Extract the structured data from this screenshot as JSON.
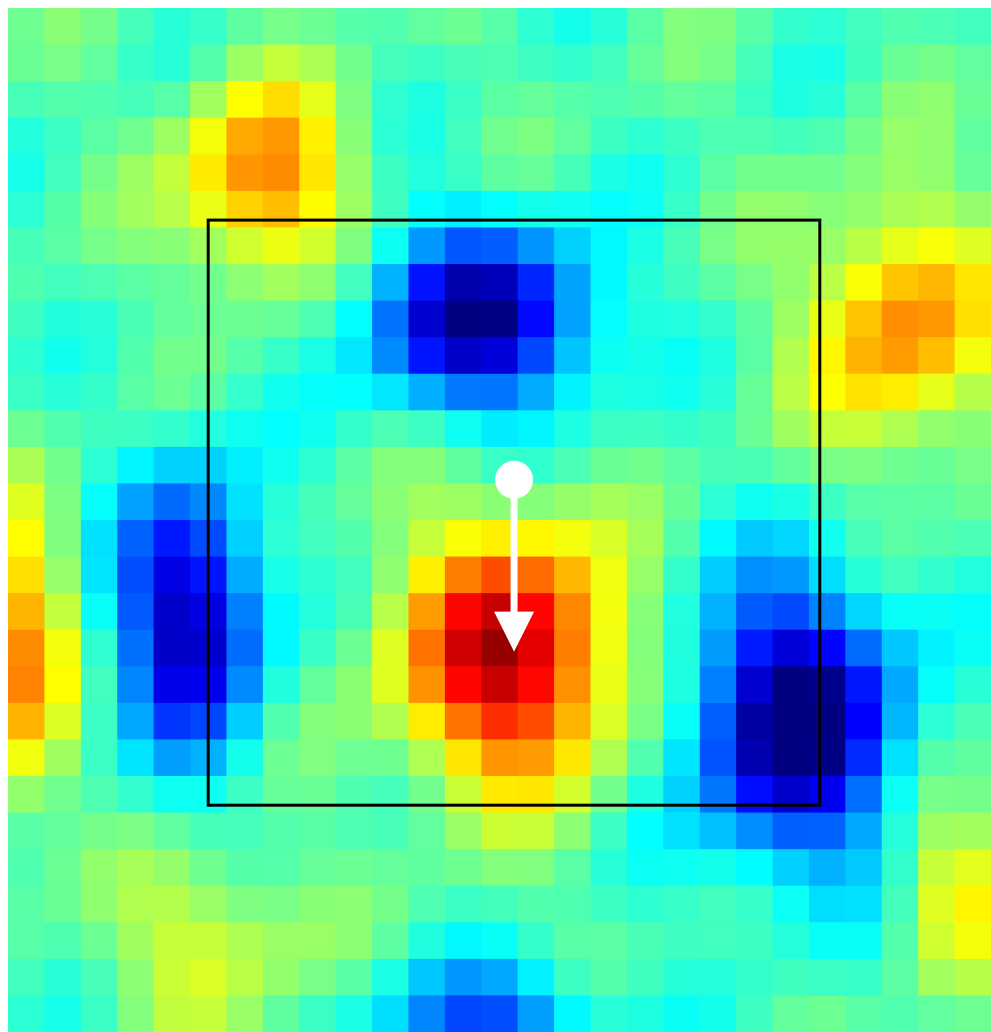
{
  "chart_data": {
    "type": "heatmap",
    "title": "",
    "xlabel": "",
    "ylabel": "",
    "colormap": "jet",
    "grid_cols": 27,
    "grid_rows": 28,
    "value_range": [
      -1,
      1
    ],
    "blobs": [
      {
        "cx": 7.0,
        "cy": 4.7,
        "sx": 2.3,
        "sy": 2.7,
        "amp": 0.62
      },
      {
        "cx": 24.5,
        "cy": 8.7,
        "sx": 2.6,
        "sy": 3.4,
        "amp": 0.58
      },
      {
        "cx": 13.0,
        "cy": 8.5,
        "sx": 3.1,
        "sy": 2.5,
        "amp": -0.85
      },
      {
        "cx": 13.8,
        "cy": 17.7,
        "sx": 3.0,
        "sy": 3.5,
        "amp": 1.0
      },
      {
        "cx": 5.0,
        "cy": 16.6,
        "sx": 2.0,
        "sy": 3.8,
        "amp": -0.82
      },
      {
        "cx": 21.6,
        "cy": 19.5,
        "sx": 2.9,
        "sy": 3.8,
        "amp": -0.95
      },
      {
        "cx": 0.5,
        "cy": 17.7,
        "sx": 1.2,
        "sy": 4.0,
        "amp": 0.55
      },
      {
        "cx": 13.2,
        "cy": 27.8,
        "sx": 3.0,
        "sy": 1.6,
        "amp": -0.5
      },
      {
        "cx": 5.5,
        "cy": 25.5,
        "sx": 2.5,
        "sy": 2.5,
        "amp": 0.3
      },
      {
        "cx": 26.0,
        "cy": 24.0,
        "sx": 1.5,
        "sy": 2.5,
        "amp": 0.35
      }
    ],
    "background_value": -0.1,
    "overlay": {
      "box": {
        "x0": 5.5,
        "y0": 5.8,
        "x1": 22.3,
        "y1": 21.8,
        "color": "#000000"
      },
      "arrow": {
        "start": [
          13.9,
          12.9
        ],
        "end": [
          13.9,
          17.6
        ],
        "color": "#ffffff"
      }
    }
  }
}
